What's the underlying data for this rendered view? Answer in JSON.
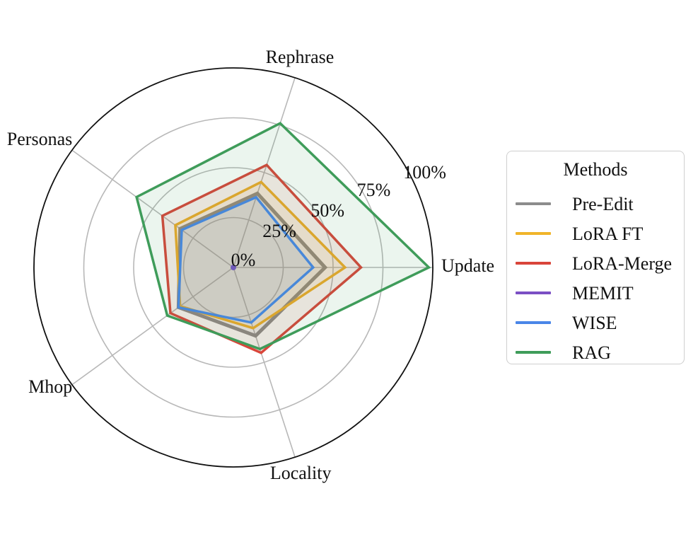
{
  "chart_data": {
    "type": "radar",
    "axes": [
      "Update",
      "Rephrase",
      "Personas",
      "Mhop",
      "Locality"
    ],
    "radial_ticks": [
      {
        "value": 0,
        "label": "0%"
      },
      {
        "value": 25,
        "label": "25%"
      },
      {
        "value": 50,
        "label": "50%"
      },
      {
        "value": 75,
        "label": "75%"
      },
      {
        "value": 100,
        "label": "100%"
      }
    ],
    "rlim": [
      0,
      100
    ],
    "grid": true,
    "legend": {
      "title": "Methods",
      "position": "right"
    },
    "series": [
      {
        "name": "Pre-Edit",
        "color": "#8c8c8c",
        "values": [
          46,
          39,
          33,
          34,
          36
        ]
      },
      {
        "name": "LoRA FT",
        "color": "#f0b429",
        "values": [
          56,
          45,
          36,
          33,
          32
        ]
      },
      {
        "name": "LoRA-Merge",
        "color": "#d9453a",
        "values": [
          64,
          54,
          44,
          39,
          45
        ]
      },
      {
        "name": "MEMIT",
        "color": "#7b4fc4",
        "values": [
          0,
          0,
          0,
          0,
          0
        ]
      },
      {
        "name": "WISE",
        "color": "#4a86e8",
        "values": [
          40,
          37,
          32,
          34,
          29
        ]
      },
      {
        "name": "RAG",
        "color": "#3f9c5a",
        "values": [
          98,
          76,
          60,
          41,
          43
        ]
      }
    ]
  }
}
